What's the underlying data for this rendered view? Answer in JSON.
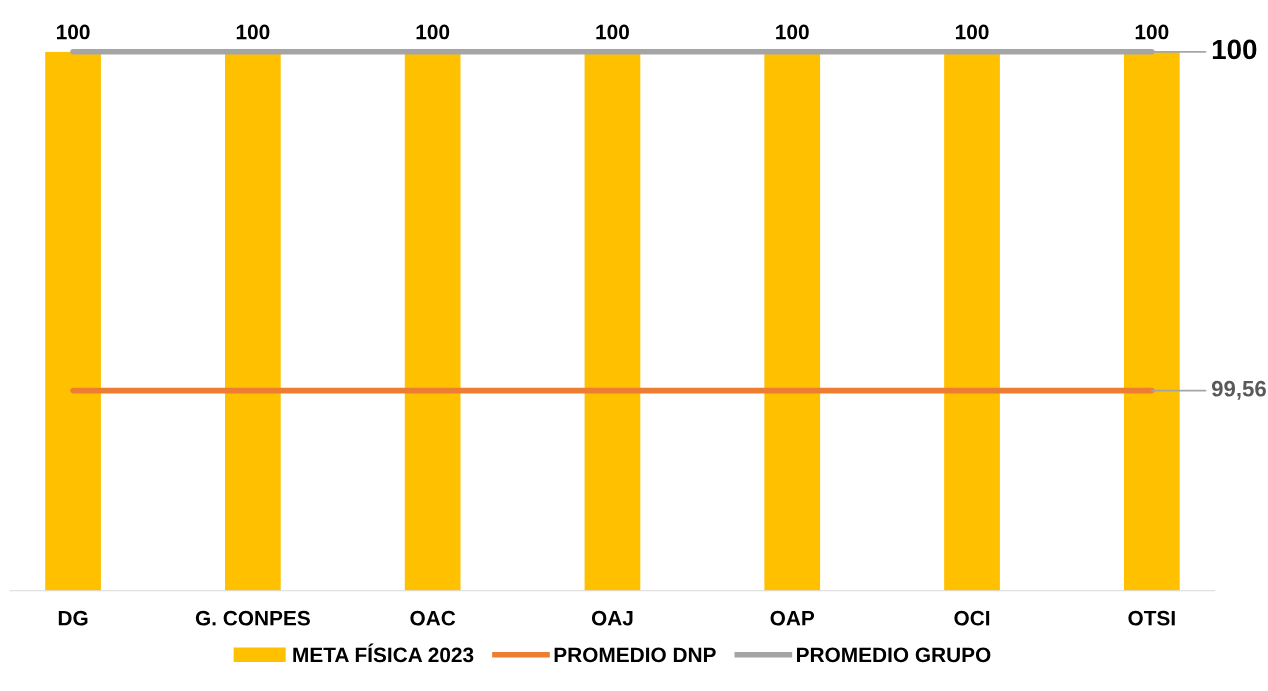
{
  "chart_data": {
    "type": "bar",
    "categories": [
      "DG",
      "G. CONPES",
      "OAC",
      "OAJ",
      "OAP",
      "OCI",
      "OTSI"
    ],
    "ylim": [
      99.3,
      100
    ],
    "grid": false,
    "legend": "bottom",
    "tick_labels": "x",
    "series": [
      {
        "name": "META FÍSICA 2023",
        "color": "#ffc000",
        "values": [
          100,
          100,
          100,
          100,
          100,
          100,
          100
        ],
        "value_labels": [
          "100",
          "100",
          "100",
          "100",
          "100",
          "100",
          "100"
        ]
      },
      {
        "name": "PROMEDIO DNP",
        "type": "line",
        "color": "#ed7d31",
        "values": [
          99.56,
          99.56,
          99.56,
          99.56,
          99.56,
          99.56,
          99.56
        ],
        "value_labels": [
          null,
          null,
          null,
          null,
          null,
          null,
          "99,56"
        ]
      },
      {
        "name": "PROMEDIO GRUPO",
        "type": "line",
        "color": "#a5a5a5",
        "values": [
          100,
          100,
          100,
          100,
          100,
          100,
          100
        ],
        "value_labels": [
          null,
          null,
          null,
          null,
          null,
          null,
          "100"
        ]
      }
    ]
  }
}
